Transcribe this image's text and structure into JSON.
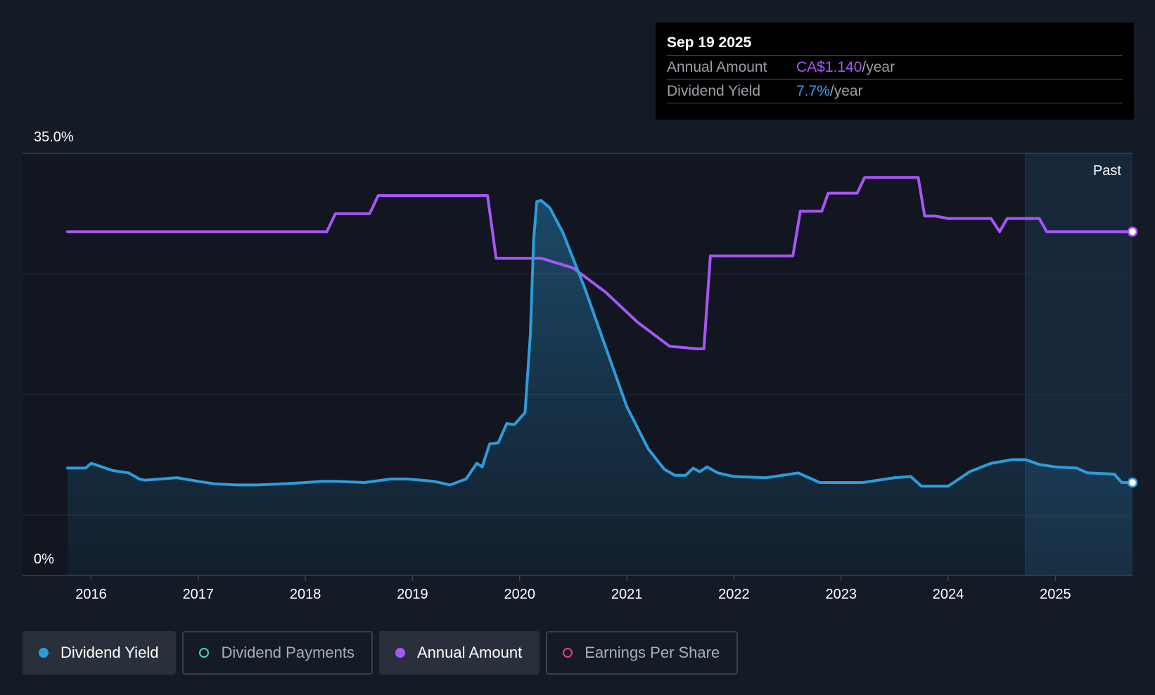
{
  "tooltip": {
    "date": "Sep 19 2025",
    "rows": [
      {
        "label": "Annual Amount",
        "value": "CA$1.140",
        "unit": "/year"
      },
      {
        "label": "Dividend Yield",
        "value": "7.7%",
        "unit": "/year"
      }
    ]
  },
  "legend": [
    {
      "label": "Dividend Yield",
      "active": true,
      "color": "#2d9cdb",
      "filled": true
    },
    {
      "label": "Dividend Payments",
      "active": false,
      "color": "#4fd1c5",
      "filled": false
    },
    {
      "label": "Annual Amount",
      "active": true,
      "color": "#a855f7",
      "filled": true
    },
    {
      "label": "Earnings Per Share",
      "active": false,
      "color": "#e0457b",
      "filled": false
    }
  ],
  "colors": {
    "background": "#151b26",
    "yield": "#2d9cdb",
    "amount": "#a855f7",
    "grid": "#2e3440"
  },
  "chart_data": {
    "type": "line",
    "ylim": [
      0,
      35
    ],
    "y_tick_labels": [
      "35.0%",
      "0%"
    ],
    "xlim": [
      2015.78,
      2025.72
    ],
    "x_ticks": [
      2016,
      2017,
      2018,
      2019,
      2020,
      2021,
      2022,
      2023,
      2024,
      2025
    ],
    "x_tick_labels": [
      "2016",
      "2017",
      "2018",
      "2019",
      "2020",
      "2021",
      "2022",
      "2023",
      "2024",
      "2025"
    ],
    "past_region_start": 2024.72,
    "past_label": "Past",
    "series": [
      {
        "name": "Dividend Yield",
        "unit": "%",
        "x": [
          2015.78,
          2015.95,
          2016.0,
          2016.1,
          2016.2,
          2016.35,
          2016.45,
          2016.5,
          2016.65,
          2016.8,
          2017.0,
          2017.15,
          2017.35,
          2017.55,
          2017.8,
          2018.0,
          2018.15,
          2018.3,
          2018.55,
          2018.8,
          2018.95,
          2019.2,
          2019.35,
          2019.5,
          2019.6,
          2019.65,
          2019.72,
          2019.8,
          2019.88,
          2019.95,
          2020.05,
          2020.1,
          2020.13,
          2020.16,
          2020.2,
          2020.28,
          2020.4,
          2020.6,
          2020.8,
          2021.0,
          2021.2,
          2021.35,
          2021.45,
          2021.55,
          2021.62,
          2021.68,
          2021.75,
          2021.85,
          2022.0,
          2022.3,
          2022.6,
          2022.8,
          2023.2,
          2023.5,
          2023.65,
          2023.75,
          2024.0,
          2024.2,
          2024.4,
          2024.6,
          2024.72,
          2024.85,
          2025.0,
          2025.2,
          2025.3,
          2025.55,
          2025.62,
          2025.72
        ],
        "values": [
          8.9,
          8.9,
          9.3,
          9.0,
          8.7,
          8.5,
          8.0,
          7.9,
          8.0,
          8.1,
          7.8,
          7.6,
          7.5,
          7.5,
          7.6,
          7.7,
          7.8,
          7.8,
          7.7,
          8.0,
          8.0,
          7.8,
          7.5,
          8.0,
          9.3,
          9.0,
          10.9,
          11.0,
          12.6,
          12.5,
          13.5,
          20.0,
          27.8,
          31.0,
          31.1,
          30.5,
          28.5,
          24.0,
          19.0,
          14.0,
          10.5,
          8.8,
          8.3,
          8.3,
          8.9,
          8.6,
          9.0,
          8.5,
          8.2,
          8.1,
          8.5,
          7.7,
          7.7,
          8.1,
          8.2,
          7.4,
          7.4,
          8.6,
          9.3,
          9.6,
          9.6,
          9.2,
          9.0,
          8.9,
          8.5,
          8.4,
          7.7,
          7.7
        ]
      },
      {
        "name": "Annual Amount",
        "unit": "% scale",
        "x": [
          2015.78,
          2018.2,
          2018.28,
          2018.6,
          2018.68,
          2019.7,
          2019.78,
          2020.2,
          2020.5,
          2020.8,
          2021.1,
          2021.4,
          2021.65,
          2021.72,
          2021.78,
          2022.55,
          2022.62,
          2022.82,
          2022.88,
          2023.15,
          2023.22,
          2023.72,
          2023.78,
          2023.88,
          2024.0,
          2024.4,
          2024.48,
          2024.55,
          2024.85,
          2024.92,
          2025.72
        ],
        "values": [
          28.5,
          28.5,
          30.0,
          30.0,
          31.5,
          31.5,
          26.3,
          26.3,
          25.5,
          23.5,
          21.0,
          19.0,
          18.8,
          18.8,
          26.5,
          26.5,
          30.2,
          30.2,
          31.7,
          31.7,
          33.0,
          33.0,
          29.8,
          29.8,
          29.6,
          29.6,
          28.5,
          29.6,
          29.6,
          28.5,
          28.5
        ]
      }
    ]
  }
}
